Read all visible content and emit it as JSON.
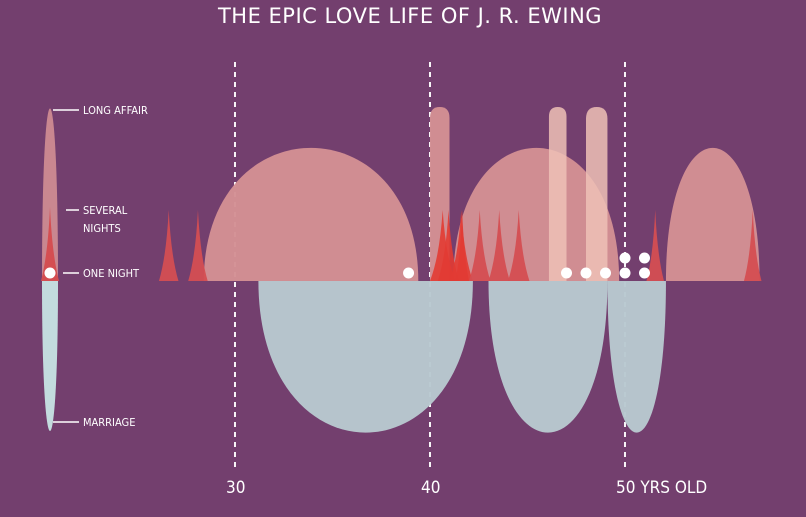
{
  "chart_data": {
    "type": "area",
    "title": "THE EPIC LOVE LIFE OF J. R. EWING",
    "x_axis": {
      "ticks": [
        {
          "value": 30,
          "label": "30"
        },
        {
          "value": 40,
          "label": "40"
        },
        {
          "value": 50,
          "label": "50 YRS OLD"
        }
      ],
      "range": [
        20,
        57
      ],
      "gridlines": "dashed vertical at ticks"
    },
    "legend": {
      "placement": "left",
      "levels": [
        {
          "key": "long_affair",
          "label": "LONG AFFAIR"
        },
        {
          "key": "several_nights",
          "label": "SEVERAL\nNIGHTS"
        },
        {
          "key": "one_night",
          "label": "ONE NIGHT"
        },
        {
          "key": "marriage",
          "label": "MARRIAGE"
        }
      ]
    },
    "colors": {
      "background": "#733f6e",
      "long_affair": "#d38f94",
      "long_affair_light": "#efc1b6",
      "several_nights": "#d44e52",
      "several_nights_bright": "#e23b33",
      "marriage": "#b8c8d0",
      "marriage_legend": "#c3dbde",
      "one_night": "#ffffff",
      "gridline": "#ffffff"
    },
    "long_affairs": [
      {
        "start": 28.4,
        "end": 39.4
      },
      {
        "start": 40.0,
        "end": 41.0
      },
      {
        "start": 41.2,
        "end": 49.7
      },
      {
        "start": 46.1,
        "end": 47.0,
        "style": "light"
      },
      {
        "start": 48.0,
        "end": 49.1,
        "style": "light"
      },
      {
        "start": 52.1,
        "end": 56.9
      }
    ],
    "several_nights": [
      {
        "start": 26.1,
        "end": 27.1
      },
      {
        "start": 27.6,
        "end": 28.6
      },
      {
        "start": 40.0,
        "end": 41.3,
        "style": "bright"
      },
      {
        "start": 40.4,
        "end": 41.5,
        "style": "bright"
      },
      {
        "start": 41.0,
        "end": 42.2,
        "style": "bright"
      },
      {
        "start": 41.3,
        "end": 42.0,
        "style": "bright"
      },
      {
        "start": 42.0,
        "end": 43.1
      },
      {
        "start": 43.0,
        "end": 44.1
      },
      {
        "start": 44.0,
        "end": 45.1
      },
      {
        "start": 51.1,
        "end": 52.0
      },
      {
        "start": 56.1,
        "end": 57.0
      }
    ],
    "one_nights": [
      {
        "x": 38.9,
        "count": 1
      },
      {
        "x": 47.0,
        "count": 1
      },
      {
        "x": 48.0,
        "count": 1
      },
      {
        "x": 49.0,
        "count": 1
      },
      {
        "x": 50.0,
        "count": 2
      },
      {
        "x": 51.0,
        "count": 2
      }
    ],
    "marriages": [
      {
        "start": 31.2,
        "end": 42.2
      },
      {
        "start": 43.0,
        "end": 49.1
      },
      {
        "start": 49.1,
        "end": 52.1
      }
    ]
  }
}
